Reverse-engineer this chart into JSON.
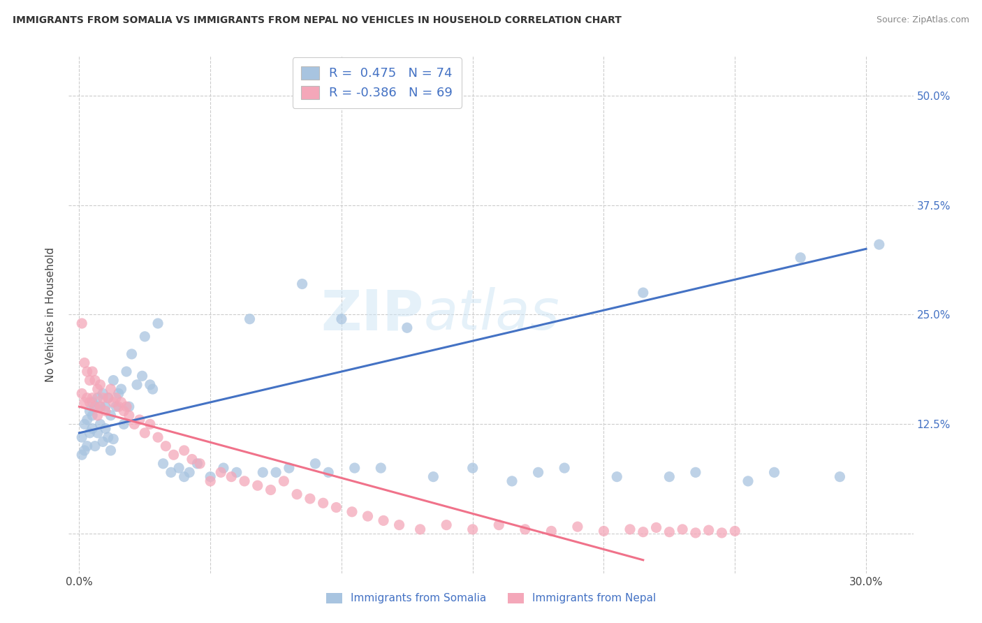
{
  "title": "IMMIGRANTS FROM SOMALIA VS IMMIGRANTS FROM NEPAL NO VEHICLES IN HOUSEHOLD CORRELATION CHART",
  "source": "Source: ZipAtlas.com",
  "ylabel": "No Vehicles in Household",
  "x_ticks": [
    0.0,
    0.05,
    0.1,
    0.15,
    0.2,
    0.25,
    0.3
  ],
  "x_tick_labels": [
    "0.0%",
    "",
    "",
    "",
    "",
    "",
    "30.0%"
  ],
  "y_ticks": [
    0.0,
    0.125,
    0.25,
    0.375,
    0.5
  ],
  "y_tick_labels_right": [
    "",
    "12.5%",
    "25.0%",
    "37.5%",
    "50.0%"
  ],
  "xlim": [
    -0.004,
    0.318
  ],
  "ylim": [
    -0.045,
    0.545
  ],
  "somalia_color": "#a8c4e0",
  "nepal_color": "#f4a7b9",
  "somalia_line_color": "#4472c4",
  "nepal_line_color": "#f0728a",
  "somalia_r": 0.475,
  "somalia_n": 74,
  "nepal_r": -0.386,
  "nepal_n": 69,
  "legend_color": "#4472c4",
  "watermark_text": "ZIPatlas",
  "somalia_line_x0": 0.0,
  "somalia_line_x1": 0.3,
  "somalia_line_y0": 0.115,
  "somalia_line_y1": 0.325,
  "nepal_line_x0": 0.0,
  "nepal_line_x1": 0.215,
  "nepal_line_y0": 0.145,
  "nepal_line_y1": -0.03,
  "somalia_scatter_x": [
    0.001,
    0.001,
    0.002,
    0.002,
    0.003,
    0.003,
    0.004,
    0.004,
    0.005,
    0.005,
    0.005,
    0.006,
    0.006,
    0.007,
    0.007,
    0.008,
    0.008,
    0.009,
    0.009,
    0.01,
    0.01,
    0.011,
    0.011,
    0.012,
    0.012,
    0.013,
    0.013,
    0.014,
    0.015,
    0.016,
    0.017,
    0.018,
    0.019,
    0.02,
    0.022,
    0.024,
    0.025,
    0.027,
    0.028,
    0.03,
    0.032,
    0.035,
    0.038,
    0.04,
    0.042,
    0.045,
    0.05,
    0.055,
    0.06,
    0.065,
    0.07,
    0.075,
    0.08,
    0.085,
    0.09,
    0.095,
    0.1,
    0.105,
    0.115,
    0.125,
    0.135,
    0.15,
    0.165,
    0.175,
    0.185,
    0.205,
    0.215,
    0.225,
    0.235,
    0.255,
    0.265,
    0.275,
    0.29,
    0.305
  ],
  "somalia_scatter_y": [
    0.09,
    0.11,
    0.095,
    0.125,
    0.1,
    0.13,
    0.115,
    0.14,
    0.12,
    0.135,
    0.15,
    0.1,
    0.145,
    0.115,
    0.155,
    0.125,
    0.145,
    0.105,
    0.16,
    0.12,
    0.145,
    0.11,
    0.155,
    0.095,
    0.135,
    0.108,
    0.175,
    0.145,
    0.16,
    0.165,
    0.125,
    0.185,
    0.145,
    0.205,
    0.17,
    0.18,
    0.225,
    0.17,
    0.165,
    0.24,
    0.08,
    0.07,
    0.075,
    0.065,
    0.07,
    0.08,
    0.065,
    0.075,
    0.07,
    0.245,
    0.07,
    0.07,
    0.075,
    0.285,
    0.08,
    0.07,
    0.245,
    0.075,
    0.075,
    0.235,
    0.065,
    0.075,
    0.06,
    0.07,
    0.075,
    0.065,
    0.275,
    0.065,
    0.07,
    0.06,
    0.07,
    0.315,
    0.065,
    0.33
  ],
  "nepal_scatter_x": [
    0.001,
    0.001,
    0.002,
    0.002,
    0.003,
    0.003,
    0.004,
    0.004,
    0.005,
    0.005,
    0.006,
    0.006,
    0.007,
    0.007,
    0.008,
    0.008,
    0.009,
    0.01,
    0.011,
    0.012,
    0.013,
    0.014,
    0.015,
    0.016,
    0.017,
    0.018,
    0.019,
    0.021,
    0.023,
    0.025,
    0.027,
    0.03,
    0.033,
    0.036,
    0.04,
    0.043,
    0.046,
    0.05,
    0.054,
    0.058,
    0.063,
    0.068,
    0.073,
    0.078,
    0.083,
    0.088,
    0.093,
    0.098,
    0.104,
    0.11,
    0.116,
    0.122,
    0.13,
    0.14,
    0.15,
    0.16,
    0.17,
    0.18,
    0.19,
    0.2,
    0.21,
    0.215,
    0.22,
    0.225,
    0.23,
    0.235,
    0.24,
    0.245,
    0.25
  ],
  "nepal_scatter_y": [
    0.24,
    0.16,
    0.195,
    0.15,
    0.185,
    0.155,
    0.175,
    0.15,
    0.155,
    0.185,
    0.175,
    0.145,
    0.165,
    0.135,
    0.17,
    0.145,
    0.155,
    0.14,
    0.155,
    0.165,
    0.15,
    0.155,
    0.145,
    0.15,
    0.14,
    0.145,
    0.135,
    0.125,
    0.13,
    0.115,
    0.125,
    0.11,
    0.1,
    0.09,
    0.095,
    0.085,
    0.08,
    0.06,
    0.07,
    0.065,
    0.06,
    0.055,
    0.05,
    0.06,
    0.045,
    0.04,
    0.035,
    0.03,
    0.025,
    0.02,
    0.015,
    0.01,
    0.005,
    0.01,
    0.005,
    0.01,
    0.005,
    0.003,
    0.008,
    0.003,
    0.005,
    0.002,
    0.007,
    0.002,
    0.005,
    0.001,
    0.004,
    0.001,
    0.003
  ]
}
